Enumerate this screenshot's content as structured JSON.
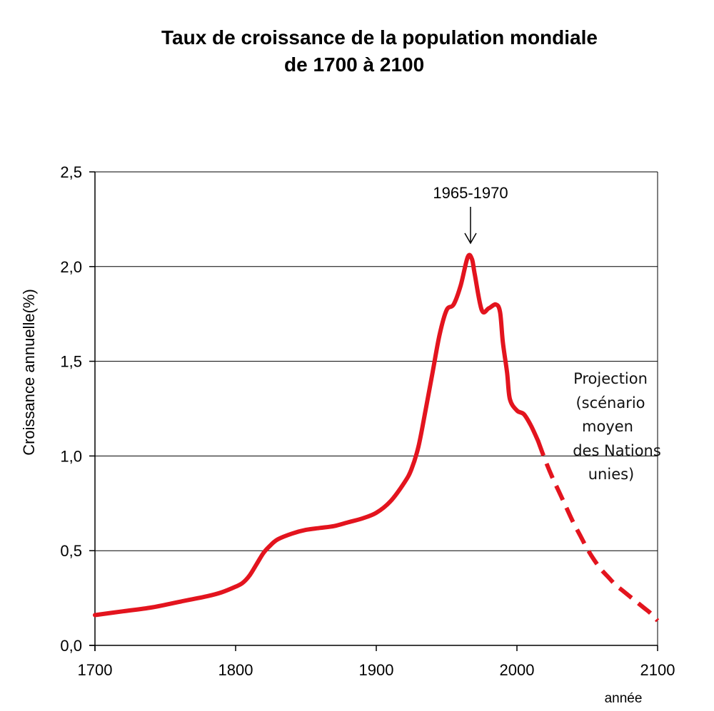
{
  "chart_data": {
    "type": "line",
    "title_lines": [
      "Taux de croissance de la population mondiale",
      "de 1700 à 2100"
    ],
    "xlabel": "année",
    "ylabel": "Croissance annuelle(%)",
    "xlim": [
      1700,
      2100
    ],
    "ylim": [
      0,
      2.5
    ],
    "x_ticks": [
      1700,
      1800,
      1900,
      2000,
      2100
    ],
    "y_ticks": [
      "0,0",
      "0,5",
      "1,0",
      "1,5",
      "2,0",
      "2,5"
    ],
    "y_tick_values": [
      0,
      0.5,
      1.0,
      1.5,
      2.0,
      2.5
    ],
    "grid": "horizontal",
    "series": [
      {
        "style": "solid",
        "color": "#e3141e",
        "x": [
          1700,
          1720,
          1740,
          1760,
          1780,
          1790,
          1800,
          1805,
          1810,
          1815,
          1820,
          1825,
          1830,
          1840,
          1850,
          1860,
          1870,
          1880,
          1890,
          1900,
          1910,
          1920,
          1925,
          1930,
          1935,
          1940,
          1945,
          1950,
          1955,
          1960,
          1965,
          1968,
          1970,
          1975,
          1980,
          1985,
          1988,
          1990,
          1993,
          1995,
          2000,
          2005,
          2010,
          2015
        ],
        "y": [
          0.16,
          0.18,
          0.2,
          0.23,
          0.26,
          0.28,
          0.31,
          0.33,
          0.37,
          0.43,
          0.49,
          0.53,
          0.56,
          0.59,
          0.61,
          0.62,
          0.63,
          0.65,
          0.67,
          0.7,
          0.76,
          0.86,
          0.93,
          1.05,
          1.24,
          1.44,
          1.64,
          1.77,
          1.8,
          1.9,
          2.05,
          2.04,
          1.96,
          1.77,
          1.78,
          1.8,
          1.76,
          1.6,
          1.44,
          1.3,
          1.24,
          1.22,
          1.16,
          1.08
        ]
      },
      {
        "style": "dashed",
        "color": "#e3141e",
        "x": [
          2015,
          2020,
          2025,
          2030,
          2035,
          2040,
          2045,
          2050,
          2055,
          2060,
          2065,
          2070,
          2075,
          2080,
          2085,
          2090,
          2095,
          2100
        ],
        "y": [
          1.08,
          0.98,
          0.89,
          0.81,
          0.73,
          0.65,
          0.58,
          0.51,
          0.45,
          0.4,
          0.36,
          0.32,
          0.29,
          0.26,
          0.23,
          0.2,
          0.17,
          0.13
        ]
      }
    ],
    "annotations": {
      "peak_label": "1965-1970",
      "peak_x": 1967,
      "projection_lines": [
        "Projection",
        "(scénario",
        "moyen",
        "des Nations",
        "unies)"
      ]
    }
  }
}
